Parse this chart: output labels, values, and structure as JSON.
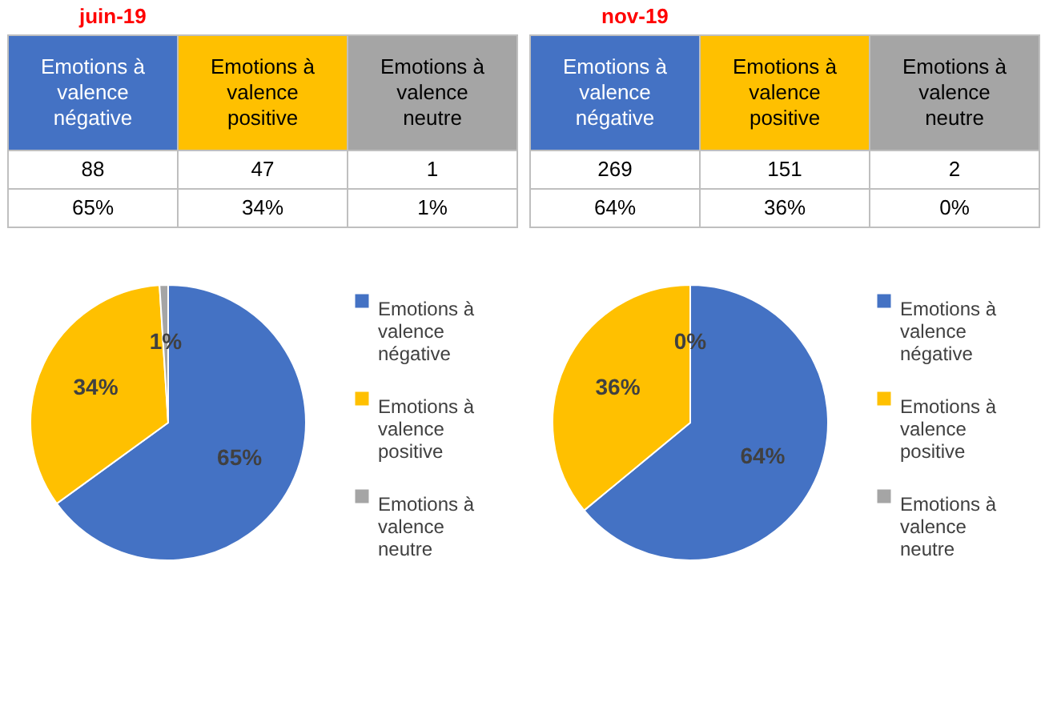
{
  "chart_data": [
    {
      "type": "pie",
      "title": "juin-19",
      "categories": [
        "Emotions à valence négative",
        "Emotions à valence positive",
        "Emotions à valence neutre"
      ],
      "values": [
        65,
        34,
        1
      ],
      "value_labels": [
        "65%",
        "34%",
        "1%"
      ],
      "annotations": [
        "88",
        "47",
        "1"
      ],
      "colors": [
        "#4472c4",
        "#ffc000",
        "#a5a5a5"
      ],
      "legend": "right"
    },
    {
      "type": "pie",
      "title": "nov-19",
      "categories": [
        "Emotions à valence négative",
        "Emotions à valence positive",
        "Emotions à valence neutre"
      ],
      "values": [
        64,
        36,
        0
      ],
      "value_labels": [
        "64%",
        "36%",
        "0%"
      ],
      "annotations": [
        "269",
        "151",
        "2"
      ],
      "colors": [
        "#4472c4",
        "#ffc000",
        "#a5a5a5"
      ],
      "legend": "right"
    }
  ]
}
